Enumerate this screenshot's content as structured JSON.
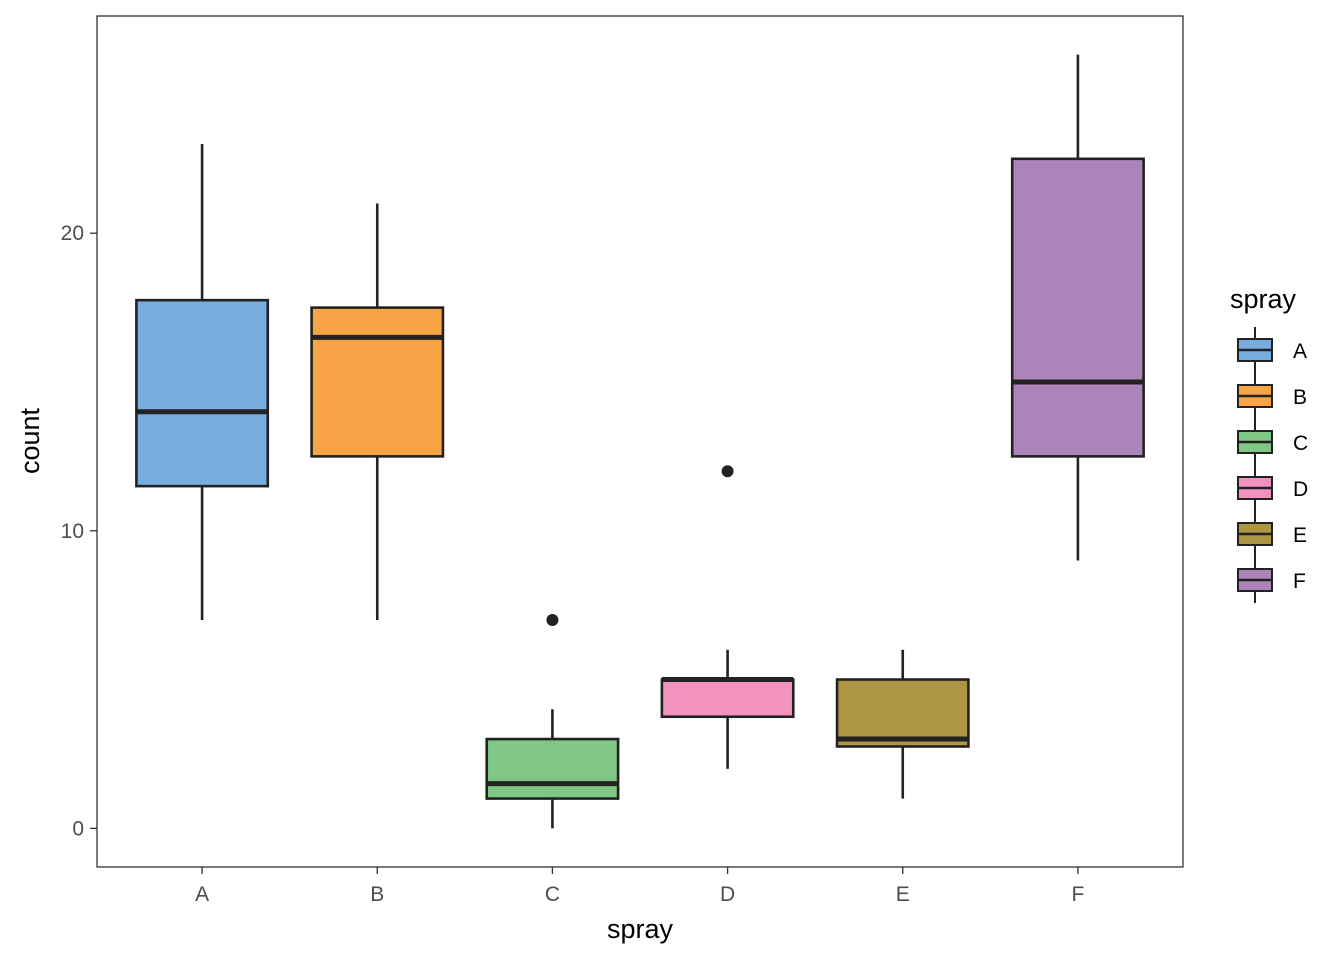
{
  "chart_data": {
    "type": "boxplot",
    "title": "",
    "xlabel": "spray",
    "ylabel": "count",
    "ylim": [
      -1.3,
      27.3
    ],
    "yticks": [
      0,
      10,
      20
    ],
    "grid": false,
    "legend": {
      "title": "spray",
      "position": "right"
    },
    "categories": [
      "A",
      "B",
      "C",
      "D",
      "E",
      "F"
    ],
    "boxes": [
      {
        "name": "A",
        "color": "#77ACDF",
        "whisker_low": 7,
        "q1": 11.5,
        "median": 14,
        "q3": 17.75,
        "whisker_high": 23,
        "outliers": []
      },
      {
        "name": "B",
        "color": "#F7A446",
        "whisker_low": 7,
        "q1": 12.5,
        "median": 16.5,
        "q3": 17.5,
        "whisker_high": 21,
        "outliers": []
      },
      {
        "name": "C",
        "color": "#80C684",
        "whisker_low": 0,
        "q1": 1,
        "median": 1.5,
        "q3": 3,
        "whisker_high": 4,
        "outliers": [
          7
        ]
      },
      {
        "name": "D",
        "color": "#F292BE",
        "whisker_low": 2,
        "q1": 3.75,
        "median": 5,
        "q3": 5,
        "whisker_high": 6,
        "outliers": [
          12
        ]
      },
      {
        "name": "E",
        "color": "#AD9544",
        "whisker_low": 1,
        "q1": 2.75,
        "median": 3,
        "q3": 5,
        "whisker_high": 6,
        "outliers": []
      },
      {
        "name": "F",
        "color": "#AC84BB",
        "whisker_low": 9,
        "q1": 12.5,
        "median": 15,
        "q3": 22.5,
        "whisker_high": 26,
        "outliers": []
      }
    ]
  }
}
